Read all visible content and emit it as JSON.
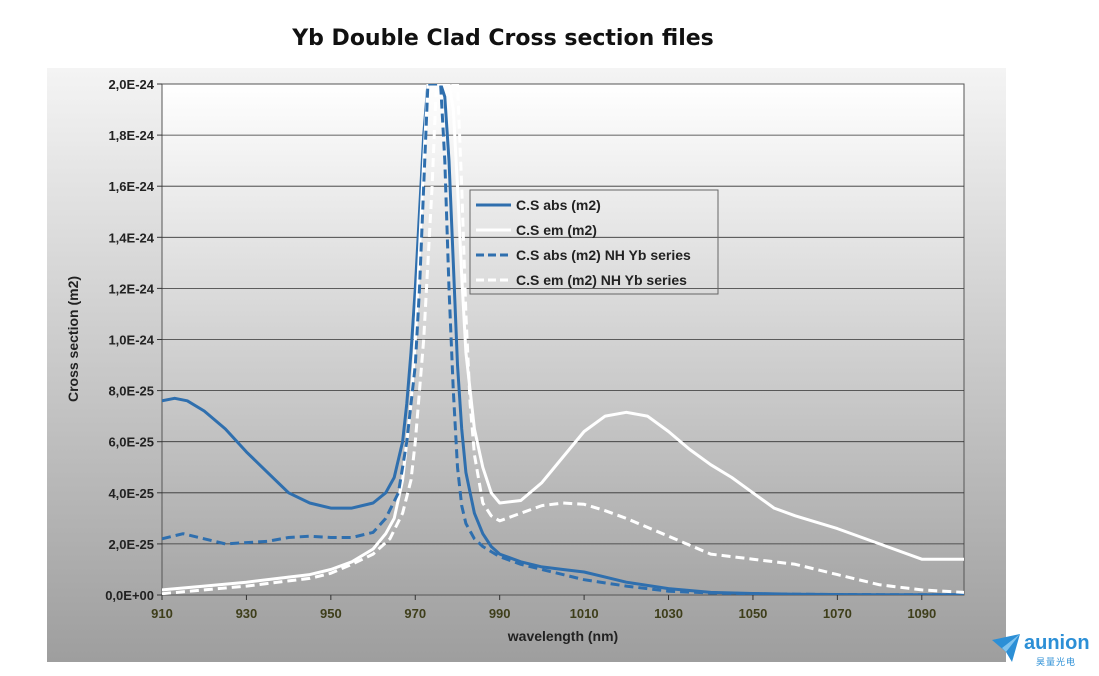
{
  "chart_data": {
    "type": "line",
    "title": "Yb Double Clad  Cross section files",
    "xlabel": "wavelength (nm)",
    "ylabel": "Cross section (m2)",
    "xlim": [
      910,
      1100
    ],
    "ylim": [
      0,
      2e-24
    ],
    "xticks": [
      910,
      930,
      950,
      970,
      990,
      1010,
      1030,
      1050,
      1070,
      1090
    ],
    "xtick_labels": [
      "910",
      "930",
      "950",
      "970",
      "990",
      "1010",
      "1030",
      "1050",
      "1070",
      "1090"
    ],
    "yticks": [
      0,
      2e-25,
      4e-25,
      6e-25,
      8e-25,
      1e-24,
      1.2e-24,
      1.4e-24,
      1.6e-24,
      1.8e-24,
      2e-24
    ],
    "ytick_labels": [
      "0,0E+00",
      "2,0E-25",
      "4,0E-25",
      "6,0E-25",
      "8,0E-25",
      "1,0E-24",
      "1,2E-24",
      "1,4E-24",
      "1,6E-24",
      "1,8E-24",
      "2,0E-24"
    ],
    "grid": "horizontal",
    "legend_position": "center-right",
    "series": [
      {
        "name": "C.S abs (m2)",
        "color": "#2f6fae",
        "style": "solid",
        "x": [
          910,
          913,
          916,
          920,
          925,
          930,
          935,
          940,
          945,
          950,
          955,
          960,
          963,
          965,
          967,
          968,
          969,
          970,
          971,
          972,
          973,
          974,
          975,
          976,
          977,
          978,
          979,
          980,
          981,
          982,
          984,
          986,
          988,
          990,
          995,
          1000,
          1005,
          1010,
          1015,
          1020,
          1030,
          1040,
          1050,
          1060,
          1070,
          1080,
          1090,
          1100
        ],
        "y": [
          7.6e-25,
          7.7e-25,
          7.6e-25,
          7.2e-25,
          6.5e-25,
          5.6e-25,
          4.8e-25,
          4e-25,
          3.6e-25,
          3.4e-25,
          3.4e-25,
          3.6e-25,
          4e-25,
          4.6e-25,
          6e-25,
          7.5e-25,
          9.5e-25,
          1.2e-24,
          1.5e-24,
          1.8e-24,
          2e-24,
          2e-24,
          2e-24,
          2e-24,
          1.95e-24,
          1.7e-24,
          1.3e-24,
          9e-25,
          6.5e-25,
          4.8e-25,
          3.2e-25,
          2.4e-25,
          1.9e-25,
          1.6e-25,
          1.3e-25,
          1.1e-25,
          1e-25,
          9e-26,
          7e-26,
          5e-26,
          2.5e-26,
          1e-26,
          6e-27,
          3e-27,
          2e-27,
          1e-27,
          1e-27,
          1e-27
        ]
      },
      {
        "name": "C.S em (m2)",
        "color": "#ffffff",
        "style": "solid",
        "x": [
          910,
          920,
          930,
          940,
          945,
          950,
          955,
          960,
          963,
          965,
          967,
          969,
          970,
          971,
          972,
          973,
          974,
          975,
          976,
          977,
          978,
          979,
          980,
          981,
          982,
          984,
          986,
          988,
          990,
          995,
          1000,
          1005,
          1010,
          1015,
          1020,
          1025,
          1030,
          1035,
          1040,
          1045,
          1050,
          1055,
          1060,
          1070,
          1080,
          1090,
          1100
        ],
        "y": [
          2e-26,
          3.5e-26,
          5e-26,
          7e-26,
          8e-26,
          1e-25,
          1.3e-25,
          1.8e-25,
          2.4e-25,
          3e-25,
          4.5e-25,
          7.5e-25,
          1e-24,
          1.35e-24,
          1.7e-24,
          2e-24,
          2e-24,
          2e-24,
          2e-24,
          2e-24,
          2e-24,
          1.9e-24,
          1.6e-24,
          1.25e-24,
          9.5e-25,
          6.5e-25,
          5e-25,
          4e-25,
          3.6e-25,
          3.7e-25,
          4.4e-25,
          5.4e-25,
          6.4e-25,
          7e-25,
          7.15e-25,
          7e-25,
          6.4e-25,
          5.7e-25,
          5.1e-25,
          4.6e-25,
          4e-25,
          3.4e-25,
          3.1e-25,
          2.6e-25,
          2e-25,
          1.4e-25,
          1.4e-25
        ]
      },
      {
        "name": "C.S abs (m2) NH Yb series",
        "color": "#2f6fae",
        "style": "dashed",
        "x": [
          910,
          915,
          920,
          925,
          930,
          935,
          940,
          945,
          950,
          955,
          960,
          963,
          966,
          968,
          970,
          971,
          972,
          973,
          974,
          975,
          976,
          977,
          978,
          979,
          980,
          981,
          982,
          984,
          986,
          988,
          990,
          995,
          1000,
          1010,
          1020,
          1030,
          1040,
          1050,
          1060,
          1070,
          1080,
          1090,
          1100
        ],
        "y": [
          2.2e-25,
          2.4e-25,
          2.2e-25,
          2e-25,
          2.05e-25,
          2.1e-25,
          2.25e-25,
          2.3e-25,
          2.25e-25,
          2.25e-25,
          2.45e-25,
          3e-25,
          4e-25,
          6e-25,
          9e-25,
          1.2e-24,
          1.6e-24,
          2e-24,
          2e-24,
          2e-24,
          2e-24,
          1.7e-24,
          1.2e-24,
          8e-25,
          5e-25,
          3.5e-25,
          2.8e-25,
          2.2e-25,
          1.9e-25,
          1.7e-25,
          1.5e-25,
          1.2e-25,
          1e-25,
          6e-26,
          3.5e-26,
          1.5e-26,
          8e-27,
          5e-27,
          3e-27,
          2e-27,
          1e-27,
          1e-27,
          1e-27
        ]
      },
      {
        "name": "C.S em (m2) NH Yb series",
        "color": "#ffffff",
        "style": "dashed",
        "x": [
          910,
          920,
          930,
          940,
          945,
          950,
          955,
          960,
          964,
          967,
          969,
          970,
          971,
          972,
          973,
          974,
          975,
          976,
          977,
          978,
          979,
          980,
          981,
          982,
          983,
          984,
          986,
          988,
          990,
          995,
          1000,
          1005,
          1010,
          1015,
          1020,
          1030,
          1040,
          1050,
          1060,
          1070,
          1080,
          1090,
          1100
        ],
        "y": [
          5e-27,
          2e-26,
          3.5e-26,
          5.5e-26,
          6.5e-26,
          8.5e-26,
          1.2e-25,
          1.6e-25,
          2.2e-25,
          3.2e-25,
          4.5e-25,
          6e-25,
          8e-25,
          1e-24,
          1.3e-24,
          1.6e-24,
          2e-24,
          2e-24,
          2e-24,
          2e-24,
          2e-24,
          2e-24,
          1.6e-24,
          1.1e-24,
          7.5e-25,
          5.5e-25,
          3.6e-25,
          3.1e-25,
          2.9e-25,
          3.2e-25,
          3.5e-25,
          3.6e-25,
          3.55e-25,
          3.3e-25,
          3e-25,
          2.3e-25,
          1.6e-25,
          1.4e-25,
          1.2e-25,
          8e-26,
          4e-26,
          2e-26,
          1e-26
        ]
      }
    ]
  },
  "brand": {
    "name": "aunion",
    "subtitle": "昊量光电",
    "color": "#2c8fd6"
  }
}
